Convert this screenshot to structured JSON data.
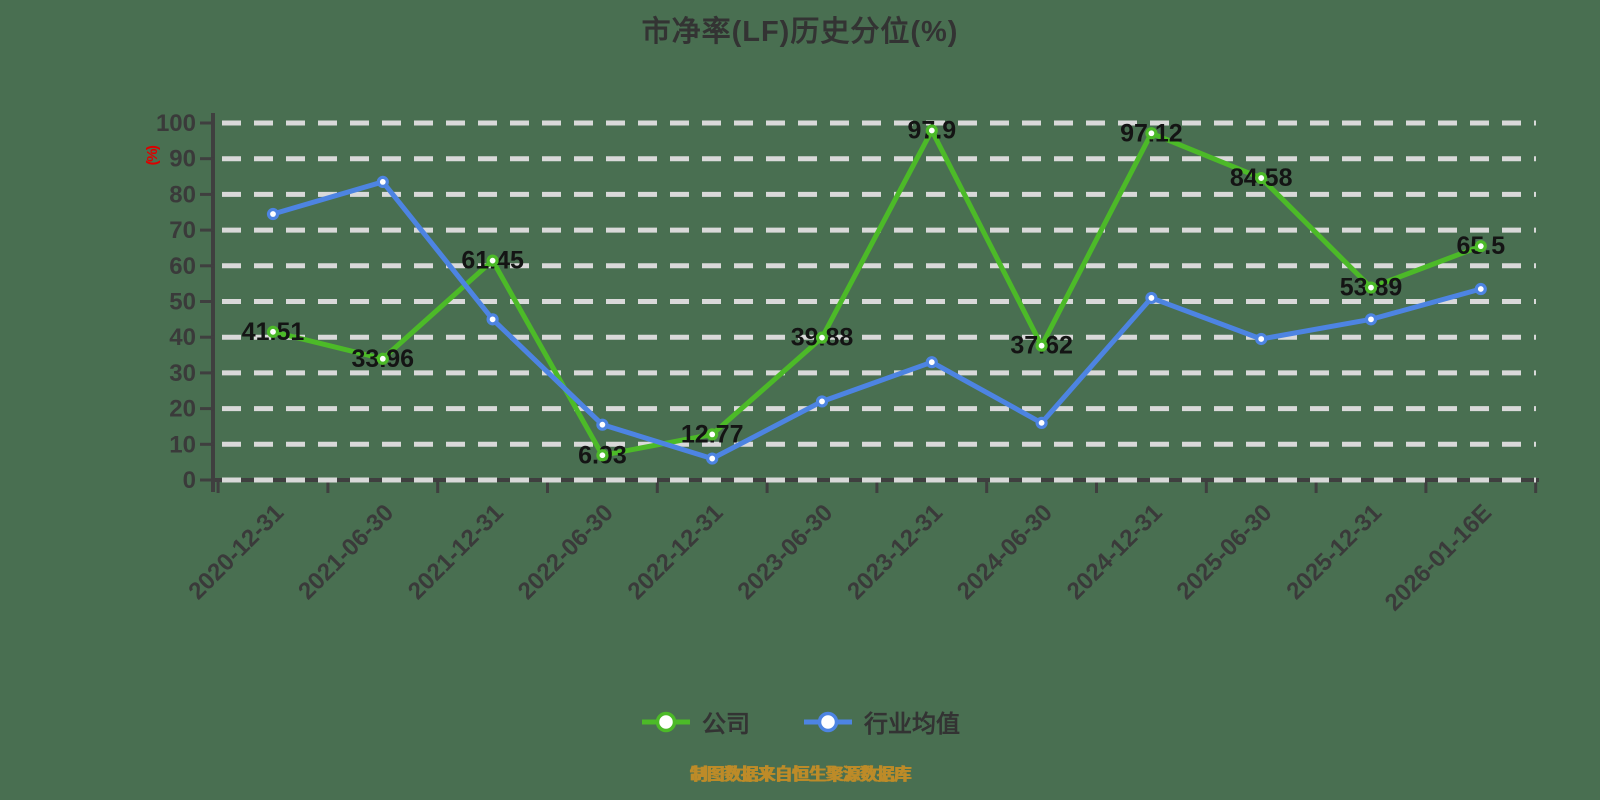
{
  "page": {
    "background_color": "#496F51"
  },
  "chart_data": {
    "type": "line",
    "title": "市净率(LF)历史分位(%)",
    "y_axis": {
      "unit_label": "(%)",
      "unit_label_color": "#DD0000",
      "min": 0,
      "max": 100,
      "tick_step": 10,
      "tick_labels": [
        "0",
        "10",
        "20",
        "30",
        "40",
        "50",
        "60",
        "70",
        "80",
        "90",
        "100"
      ]
    },
    "grid": {
      "horizontal_dashed": true,
      "gridline_color": "#D9D9D9",
      "axis_color": "#3F3F3F"
    },
    "categories": [
      "2020-12-31",
      "2021-06-30",
      "2021-12-31",
      "2022-06-30",
      "2022-12-31",
      "2023-06-30",
      "2023-12-31",
      "2024-06-30",
      "2024-12-31",
      "2025-06-30",
      "2025-12-31",
      "2026-01-16E"
    ],
    "series": [
      {
        "name": "公司",
        "color": "#4CBA28",
        "show_labels": true,
        "values": [
          41.51,
          33.96,
          61.45,
          6.93,
          12.77,
          39.88,
          97.9,
          37.62,
          97.12,
          84.58,
          53.89,
          65.5
        ]
      },
      {
        "name": "行业均值",
        "color": "#4D84E2",
        "show_labels": false,
        "values": [
          74.5,
          83.5,
          45,
          15.5,
          6,
          22,
          33,
          16,
          51,
          39.5,
          45,
          53.5
        ]
      }
    ],
    "legend": {
      "position": "bottom",
      "items": [
        "公司",
        "行业均值"
      ]
    }
  },
  "footer": {
    "source_note": "制图数据来自恒生聚源数据库",
    "color": "#BD8B28"
  }
}
